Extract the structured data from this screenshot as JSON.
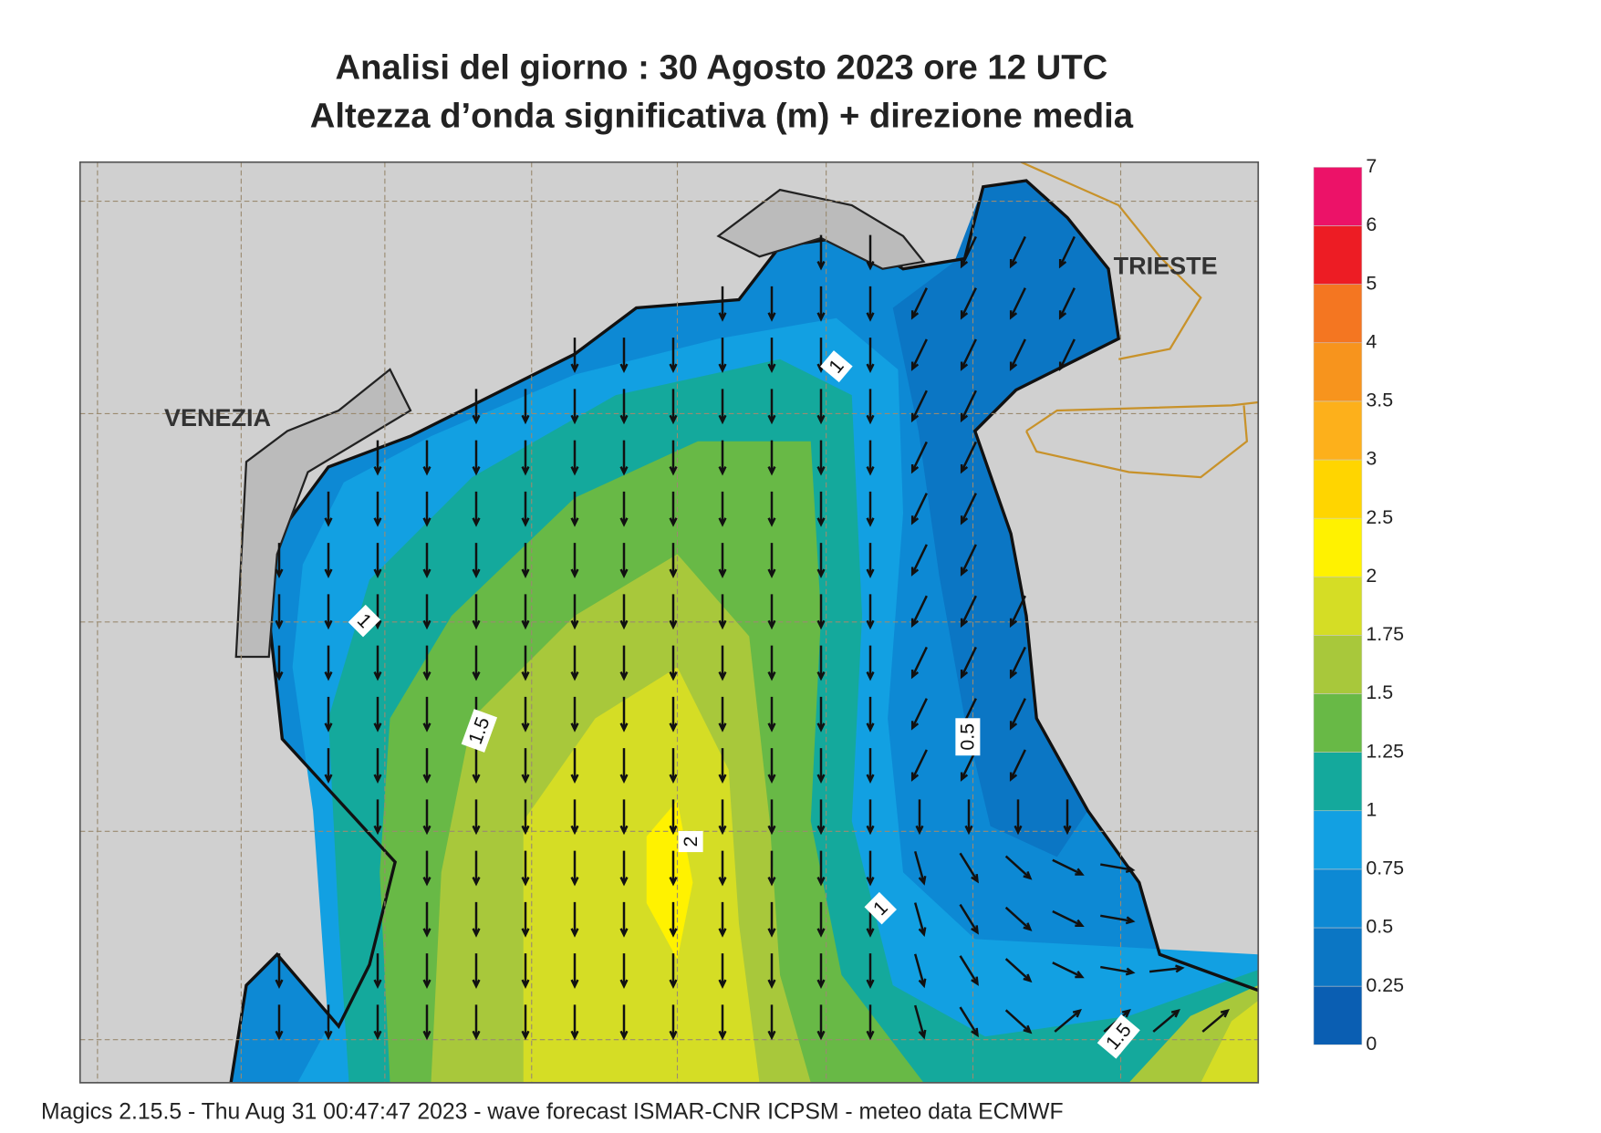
{
  "header": {
    "title": "Analisi del giorno :  30   Agosto  2023   ore 12 UTC",
    "subtitle": "Altezza d’onda significativa (m) + direzione media"
  },
  "map": {
    "places": [
      "VENEZIA",
      "TRIESTE"
    ],
    "contour_labels": [
      "1",
      "1",
      "1.5",
      "0.5",
      "2",
      "1",
      "1.5"
    ]
  },
  "legend": {
    "levels": [
      0,
      0.25,
      0.5,
      0.75,
      1,
      1.25,
      1.5,
      1.75,
      2,
      2.5,
      3,
      3.5,
      4,
      5,
      6,
      7
    ],
    "colors": [
      "#0a5eb2",
      "#0b76c4",
      "#0d89d4",
      "#12a0e2",
      "#14a99c",
      "#68b946",
      "#a8c83b",
      "#d5dd25",
      "#fff200",
      "#ffd500",
      "#fdb01b",
      "#f7941d",
      "#f47621",
      "#ed1c24",
      "#ec1268"
    ]
  },
  "footer": "Magics 2.15.5 - Thu Aug 31 00:47:47 2023 - wave forecast  ISMAR-CNR  ICPSM - meteo data   ECMWF"
}
